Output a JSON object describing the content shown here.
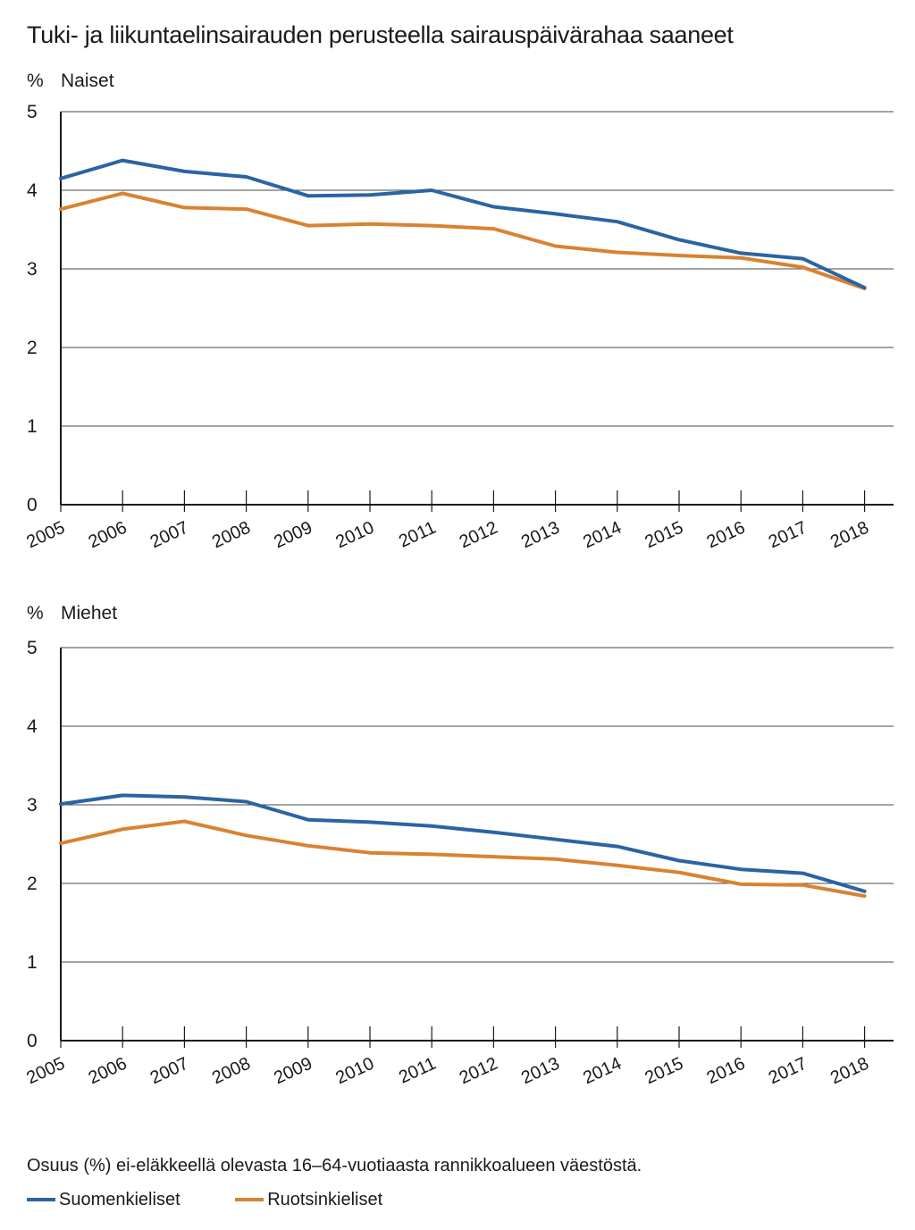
{
  "title": "Tuki- ja liikuntaelinsairauden perusteella sairauspäivärahaa saaneet",
  "footnote": "Osuus (%) ei-eläkkeellä olevasta 16–64-vuotiaasta rannikkoalueen väestöstä.",
  "legend": [
    {
      "label": "Suomenkieliset",
      "color": "#2a64a3"
    },
    {
      "label": "Ruotsinkieliset",
      "color": "#d98232"
    }
  ],
  "chart_data": [
    {
      "type": "line",
      "unit": "%",
      "subtitle": "Naiset",
      "x": [
        "2005",
        "2006",
        "2007",
        "2008",
        "2009",
        "2010",
        "2011",
        "2012",
        "2013",
        "2014",
        "2015",
        "2016",
        "2017",
        "2018"
      ],
      "ylim": [
        0,
        5
      ],
      "yticks": [
        "0",
        "1",
        "2",
        "3",
        "4",
        "5"
      ],
      "grid": true,
      "series": [
        {
          "name": "Suomenkieliset",
          "color": "#2a64a3",
          "values": [
            4.15,
            4.38,
            4.24,
            4.17,
            3.93,
            3.94,
            4.0,
            3.79,
            3.7,
            3.6,
            3.37,
            3.2,
            3.13,
            2.76
          ]
        },
        {
          "name": "Ruotsinkieliset",
          "color": "#d98232",
          "values": [
            3.76,
            3.96,
            3.78,
            3.76,
            3.55,
            3.57,
            3.55,
            3.51,
            3.29,
            3.21,
            3.17,
            3.14,
            3.02,
            2.75
          ]
        }
      ]
    },
    {
      "type": "line",
      "unit": "%",
      "subtitle": "Miehet",
      "x": [
        "2005",
        "2006",
        "2007",
        "2008",
        "2009",
        "2010",
        "2011",
        "2012",
        "2013",
        "2014",
        "2015",
        "2016",
        "2017",
        "2018"
      ],
      "ylim": [
        0,
        5
      ],
      "yticks": [
        "0",
        "1",
        "2",
        "3",
        "4",
        "5"
      ],
      "grid": true,
      "series": [
        {
          "name": "Suomenkieliset",
          "color": "#2a64a3",
          "values": [
            3.01,
            3.12,
            3.1,
            3.04,
            2.81,
            2.78,
            2.73,
            2.65,
            2.56,
            2.47,
            2.29,
            2.18,
            2.13,
            1.9
          ]
        },
        {
          "name": "Ruotsinkieliset",
          "color": "#d98232",
          "values": [
            2.51,
            2.69,
            2.79,
            2.61,
            2.48,
            2.39,
            2.37,
            2.34,
            2.31,
            2.23,
            2.14,
            1.99,
            1.98,
            1.84
          ]
        }
      ]
    }
  ]
}
